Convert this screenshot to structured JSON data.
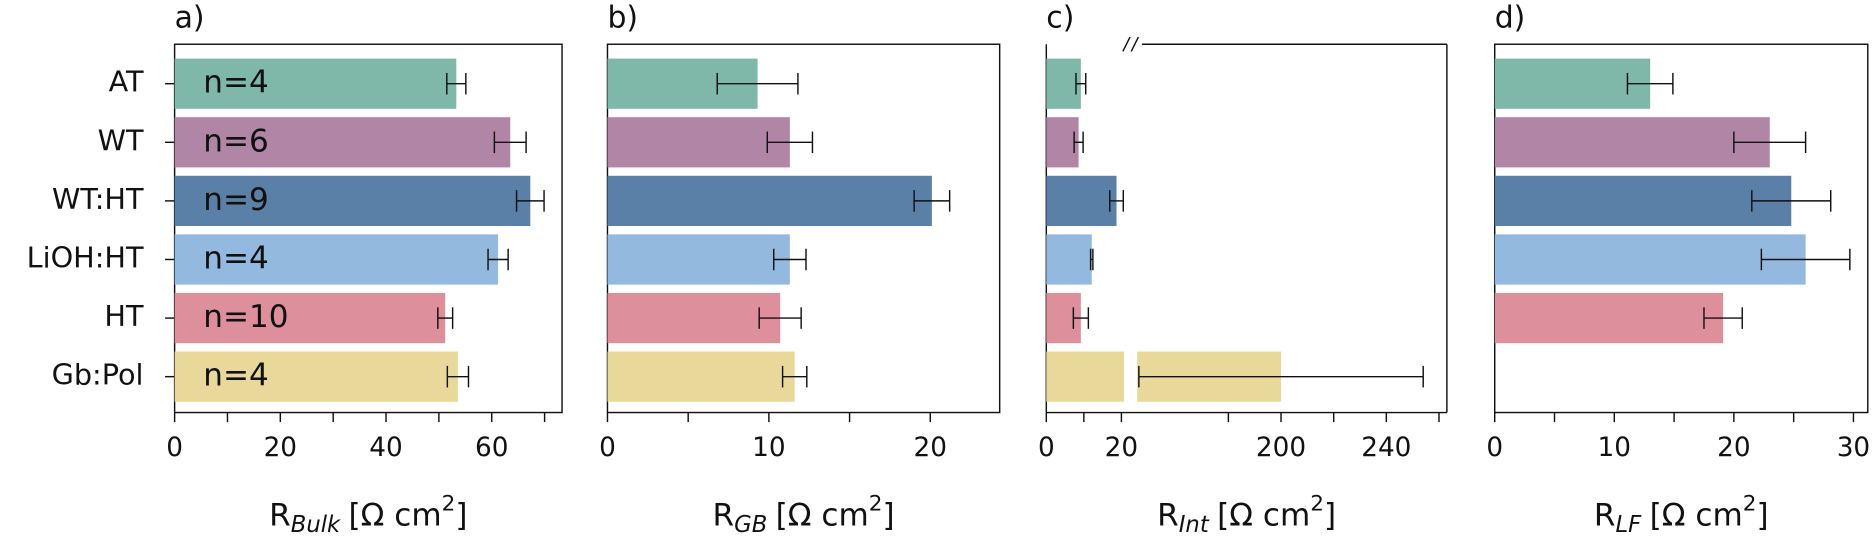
{
  "chart_data": [
    {
      "type": "bar",
      "orientation": "horizontal",
      "panel_label": "a)",
      "categories": [
        "AT",
        "WT",
        "WT:HT",
        "LiOH:HT",
        "HT",
        "Gb:Pol"
      ],
      "annotations": [
        "n=4",
        "n=6",
        "n=9",
        "n=4",
        "n=10",
        "n=4"
      ],
      "xlabel": {
        "main": "R",
        "sub": "Bulk",
        "unit": "[Ω cm",
        "sup": "2",
        "end": "]"
      },
      "xlim": [
        0,
        73.3
      ],
      "xticks": [
        0,
        20,
        40,
        60
      ],
      "xminorticks": [
        10,
        30,
        50,
        70
      ],
      "series": [
        {
          "values": [
            53.3,
            63.5,
            67.3,
            61.2,
            51.2,
            53.6
          ],
          "errors": [
            1.8,
            3,
            2.6,
            1.9,
            1.4,
            2
          ],
          "colors": [
            "#7fb8a9",
            "#b085a5",
            "#5a80a8",
            "#94b9de",
            "#de8f9c",
            "#e8d99a"
          ]
        }
      ]
    },
    {
      "type": "bar",
      "orientation": "horizontal",
      "panel_label": "b)",
      "xlabel": {
        "main": "R",
        "sub": "GB",
        "unit": "[Ω cm",
        "sup": "2",
        "end": "]"
      },
      "xlim": [
        0,
        24.3
      ],
      "xticks": [
        0,
        10,
        20
      ],
      "xminorticks": [
        5,
        15
      ],
      "series": [
        {
          "values": [
            9.3,
            11.3,
            20.1,
            11.3,
            10.7,
            11.6
          ],
          "errors": [
            2.5,
            1.4,
            1.1,
            1,
            1.3,
            0.75
          ],
          "colors": [
            "#7fb8a9",
            "#b085a5",
            "#5a80a8",
            "#94b9de",
            "#de8f9c",
            "#e8d99a"
          ]
        }
      ]
    },
    {
      "type": "broken-bar",
      "orientation": "horizontal",
      "panel_label": "c)",
      "xlabel": {
        "main": "R",
        "sub": "Int",
        "unit": "[Ω cm",
        "sup": "2",
        "end": "]"
      },
      "xlim": [
        0,
        20.7
      ],
      "xticks": [
        0,
        20
      ],
      "xminorticks": [
        10
      ],
      "xlim2": [
        144,
        263
      ],
      "x2ticks": [
        200,
        240
      ],
      "x2minorticks": [
        180,
        220,
        260
      ],
      "series": [
        {
          "values": [
            9.2,
            8.6,
            18.7,
            12.1,
            9.2,
            200
          ],
          "errors": [
            1.3,
            1.2,
            1.8,
            0.3,
            2,
            54
          ],
          "colors": [
            "#7fb8a9",
            "#b085a5",
            "#5a80a8",
            "#94b9de",
            "#de8f9c",
            "#e8d99a"
          ]
        }
      ]
    },
    {
      "type": "bar",
      "orientation": "horizontal",
      "panel_label": "d)",
      "xlabel": {
        "main": "R",
        "sub": "LF",
        "unit": "[Ω cm",
        "sup": "2",
        "end": "]"
      },
      "xlim": [
        0,
        31.2
      ],
      "xticks": [
        0,
        10,
        20,
        30
      ],
      "xminorticks": [
        5,
        15,
        25
      ],
      "series": [
        {
          "values": [
            13,
            23,
            24.8,
            26,
            19.1,
            null
          ],
          "errors": [
            1.9,
            3,
            3.3,
            3.7,
            1.6,
            null
          ],
          "colors": [
            "#7fb8a9",
            "#b085a5",
            "#5a80a8",
            "#94b9de",
            "#de8f9c",
            "#e8d99a"
          ]
        }
      ]
    }
  ]
}
